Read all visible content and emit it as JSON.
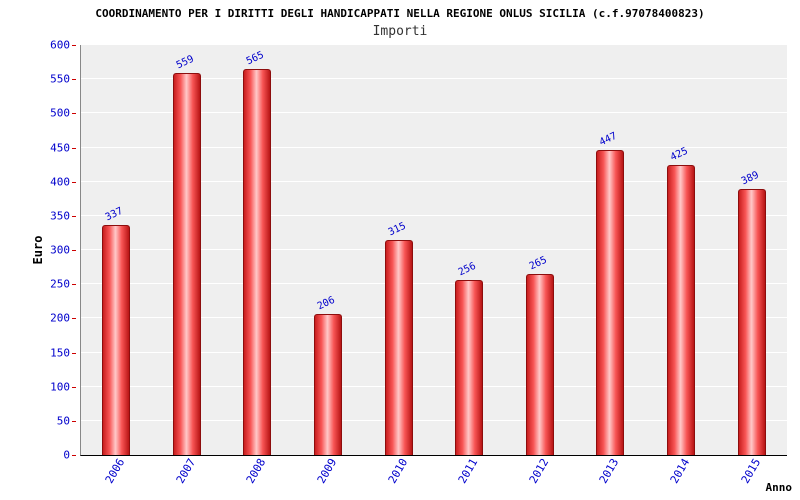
{
  "chart_data": {
    "type": "bar",
    "title": "COORDINAMENTO PER I DIRITTI DEGLI HANDICAPPATI NELLA REGIONE ONLUS SICILIA (c.f.97078400823)",
    "subtitle": "Importi",
    "categories": [
      "2006",
      "2007",
      "2008",
      "2009",
      "2010",
      "2011",
      "2012",
      "2013",
      "2014",
      "2015"
    ],
    "values": [
      337,
      559,
      565,
      206,
      315,
      256,
      265,
      447,
      425,
      389
    ],
    "xlabel": "Anno",
    "ylabel": "Euro",
    "ylim": [
      0,
      600
    ],
    "ytick_step": 50,
    "grid": true,
    "legend": "none",
    "plot_background": "#efefef",
    "bar_color": "#e02020",
    "tick_label_color": "#0000cc"
  }
}
